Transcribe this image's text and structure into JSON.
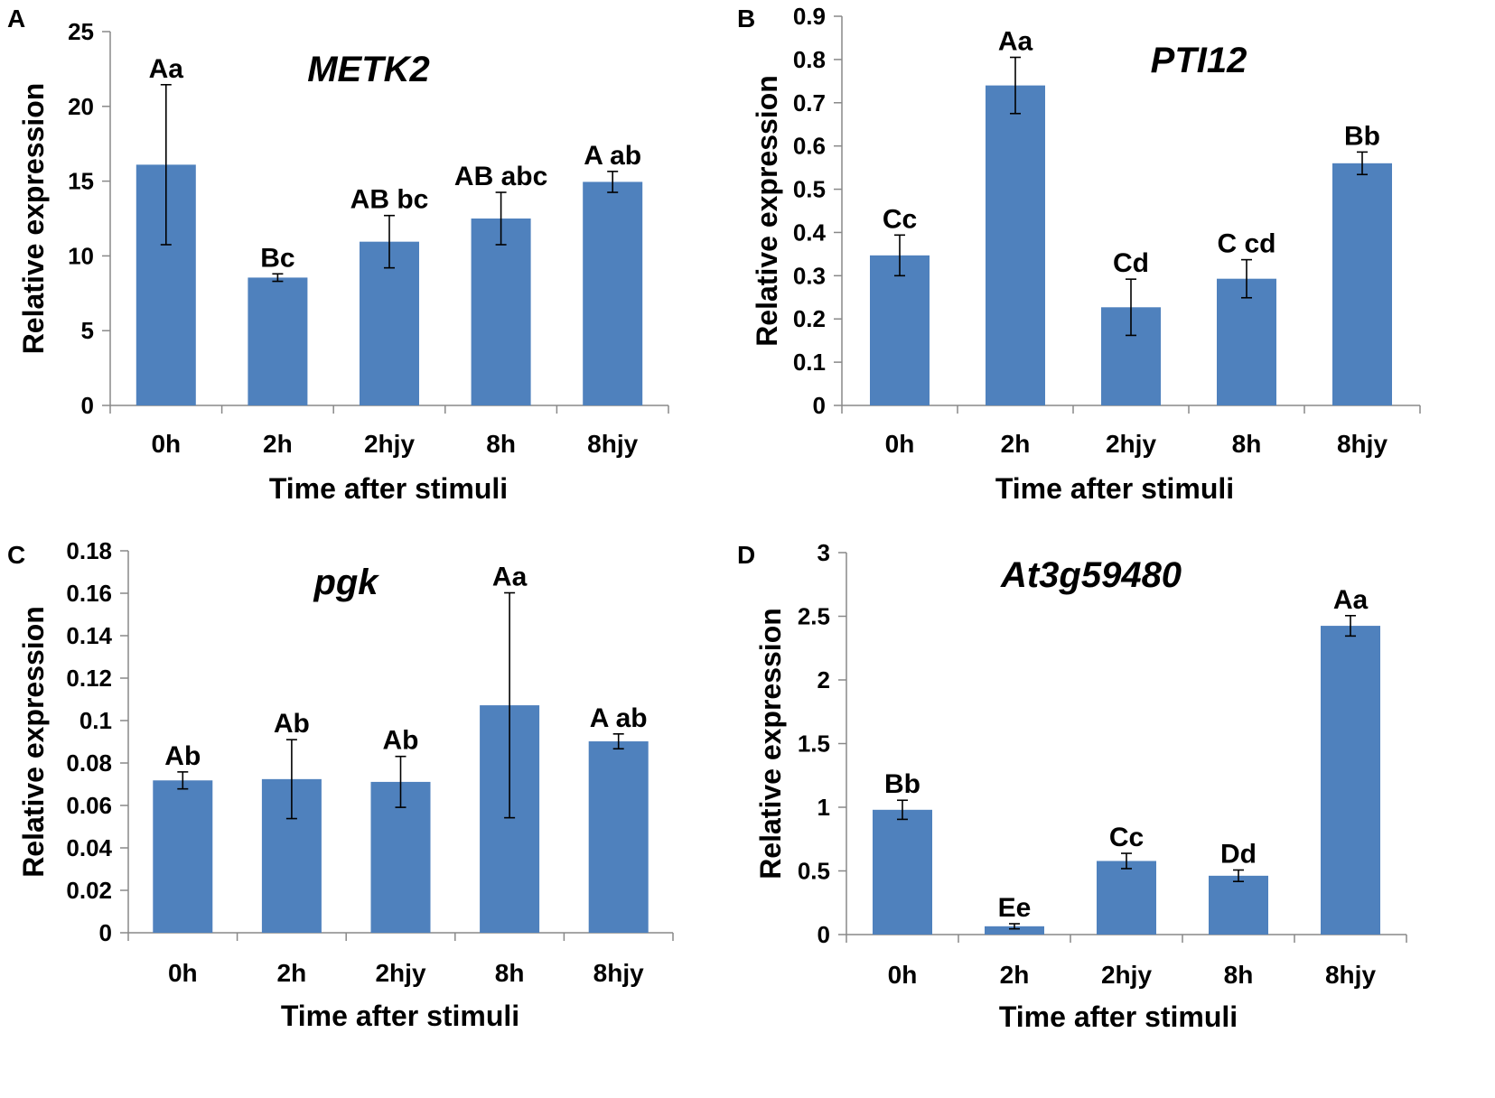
{
  "chart_data": [
    {
      "panel": "A",
      "type": "bar",
      "title": "METK2",
      "xlabel": "Time after stimuli",
      "ylabel": "Relative  expression",
      "categories": [
        "0h",
        "2h",
        "2hjy",
        "8h",
        "8hjy"
      ],
      "values": [
        16.1,
        8.55,
        10.95,
        12.5,
        14.95
      ],
      "errors": [
        5.35,
        0.25,
        1.75,
        1.75,
        0.7
      ],
      "significance": [
        "Aa",
        "Bc",
        "AB bc",
        "AB abc",
        "A ab"
      ],
      "ylim": [
        0,
        25
      ],
      "yticks": [
        0,
        5,
        10,
        15,
        20,
        25
      ],
      "ytick_labels": [
        "0",
        "5",
        "10",
        "15",
        "20",
        "25"
      ],
      "bar_color": "#4f81bd"
    },
    {
      "panel": "B",
      "type": "bar",
      "title": "PTI12",
      "xlabel": "Time after stimuli",
      "ylabel": "Relative  expression",
      "categories": [
        "0h",
        "2h",
        "2hjy",
        "8h",
        "8hjy"
      ],
      "values": [
        0.347,
        0.74,
        0.227,
        0.293,
        0.56
      ],
      "errors": [
        0.047,
        0.065,
        0.065,
        0.044,
        0.026
      ],
      "significance": [
        "Cc",
        "Aa",
        "Cd",
        "C cd",
        "Bb"
      ],
      "ylim": [
        0,
        0.9
      ],
      "yticks": [
        0,
        0.1,
        0.2,
        0.3,
        0.4,
        0.5,
        0.6,
        0.7,
        0.8,
        0.9
      ],
      "ytick_labels": [
        "0",
        "0.1",
        "0.2",
        "0.3",
        "0.4",
        "0.5",
        "0.6",
        "0.7",
        "0.8",
        "0.9"
      ],
      "bar_color": "#4f81bd"
    },
    {
      "panel": "C",
      "type": "bar",
      "title": "pgk",
      "xlabel": "Time after stimuli",
      "ylabel": "Relative  expression",
      "categories": [
        "0h",
        "2h",
        "2hjy",
        "8h",
        "8hjy"
      ],
      "values": [
        0.0718,
        0.0724,
        0.0711,
        0.1072,
        0.0902
      ],
      "errors": [
        0.004,
        0.0186,
        0.012,
        0.053,
        0.0035
      ],
      "significance": [
        "Ab",
        "Ab",
        "Ab",
        "Aa",
        "A ab"
      ],
      "ylim": [
        0,
        0.18
      ],
      "yticks": [
        0,
        0.02,
        0.04,
        0.06,
        0.08,
        0.1,
        0.12,
        0.14,
        0.16,
        0.18
      ],
      "ytick_labels": [
        "0",
        "0.02",
        "0.04",
        "0.06",
        "0.08",
        "0.1",
        "0.12",
        "0.14",
        "0.16",
        "0.18"
      ],
      "bar_color": "#4f81bd"
    },
    {
      "panel": "D",
      "type": "bar",
      "title": "At3g59480",
      "xlabel": "Time after stimuli",
      "ylabel": "Relative  expression",
      "categories": [
        "0h",
        "2h",
        "2hjy",
        "8h",
        "8hjy"
      ],
      "values": [
        0.98,
        0.065,
        0.578,
        0.462,
        2.425
      ],
      "errors": [
        0.075,
        0.02,
        0.06,
        0.045,
        0.08
      ],
      "significance": [
        "Bb",
        "Ee",
        "Cc",
        "Dd",
        "Aa"
      ],
      "ylim": [
        0,
        3
      ],
      "yticks": [
        0,
        0.5,
        1,
        1.5,
        2,
        2.5,
        3
      ],
      "ytick_labels": [
        "0",
        "0.5",
        "1",
        "1.5",
        "2",
        "2.5",
        "3"
      ],
      "bar_color": "#4f81bd"
    }
  ]
}
